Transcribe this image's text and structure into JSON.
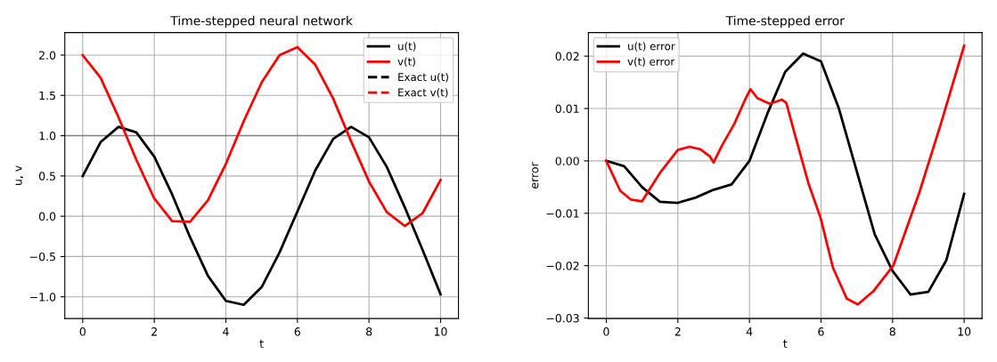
{
  "chart_data": [
    {
      "type": "line",
      "title": "Time-stepped neural network",
      "xlabel": "t",
      "ylabel": "u, v",
      "x": [
        0,
        0.5,
        1,
        1.5,
        2,
        2.5,
        3,
        3.5,
        4,
        4.5,
        5,
        5.5,
        6,
        6.5,
        7,
        7.5,
        8,
        8.5,
        9,
        9.5,
        10
      ],
      "series": [
        {
          "name": "u(t)",
          "color": "#000000",
          "values": [
            0.5,
            0.92,
            1.11,
            1.04,
            0.74,
            0.27,
            -0.26,
            -0.74,
            -1.05,
            -1.1,
            -0.88,
            -0.45,
            0.06,
            0.57,
            0.96,
            1.11,
            0.98,
            0.61,
            0.11,
            -0.42,
            -0.97
          ]
        },
        {
          "name": "v(t)",
          "color": "#ff0000",
          "values": [
            2.0,
            1.72,
            1.23,
            0.7,
            0.22,
            -0.06,
            -0.07,
            0.2,
            0.65,
            1.18,
            1.66,
            2.0,
            2.1,
            1.88,
            1.46,
            0.93,
            0.43,
            0.05,
            -0.12,
            0.04,
            0.45
          ]
        },
        {
          "name": "Exact u(t)",
          "color": "#000000",
          "line_style": "dashed",
          "values": [
            null,
            null,
            null,
            null,
            null,
            null,
            null,
            null,
            null,
            null,
            null,
            null,
            null,
            null,
            null,
            null,
            null,
            null,
            null,
            null,
            null
          ]
        },
        {
          "name": "Exact v(t)",
          "color": "#ff0000",
          "line_style": "dashed",
          "values": [
            null,
            null,
            null,
            null,
            null,
            null,
            null,
            null,
            null,
            null,
            null,
            null,
            null,
            null,
            null,
            null,
            null,
            null,
            null,
            null,
            null
          ]
        }
      ],
      "xlim": [
        -0.5,
        10.5
      ],
      "xticks": [
        0,
        2,
        4,
        6,
        8,
        10
      ],
      "ylim": [
        -1.27,
        2.28
      ],
      "yticks": [
        {
          "value": -1.0,
          "label": "−1.0"
        },
        {
          "value": -0.5,
          "label": "−0.5"
        },
        {
          "value": 0.0,
          "label": "0.0"
        },
        {
          "value": 0.5,
          "label": "0.5"
        },
        {
          "value": 1.0,
          "label": "1.0"
        },
        {
          "value": 1.5,
          "label": "1.5"
        },
        {
          "value": 2.0,
          "label": "2.0"
        }
      ],
      "ref_lines": [
        {
          "axis": "y",
          "value": 1.0,
          "color": "#808080"
        }
      ],
      "grid": true,
      "legend": "top right"
    },
    {
      "type": "line",
      "title": "Time-stepped error",
      "xlabel": "t",
      "ylabel": "error",
      "series": [
        {
          "name": "u(t) error",
          "color": "#000000",
          "x": [
            0,
            0.5,
            1,
            1.5,
            2,
            2.5,
            3,
            3.5,
            4,
            4.5,
            5,
            5.5,
            6,
            6.5,
            7,
            7.5,
            8,
            8.5,
            9,
            9.5,
            10
          ],
          "values": [
            0,
            -0.001,
            -0.005,
            -0.0078,
            -0.008,
            -0.007,
            -0.0055,
            -0.0045,
            0.0,
            0.009,
            0.017,
            0.0205,
            0.019,
            0.01,
            -0.002,
            -0.014,
            -0.021,
            -0.0255,
            -0.025,
            -0.019,
            -0.0063
          ]
        },
        {
          "name": "v(t) error",
          "color": "#ff0000",
          "x": [
            0,
            0.39,
            0.69,
            1.0,
            1.5,
            2.0,
            2.33,
            2.63,
            2.89,
            3.0,
            3.23,
            3.58,
            3.88,
            4.03,
            4.22,
            4.57,
            4.91,
            5.03,
            5.3,
            5.65,
            5.99,
            6.33,
            6.72,
            7.03,
            7.46,
            8.02,
            8.75,
            9.35,
            10.0
          ],
          "values": [
            0,
            -0.0057,
            -0.0074,
            -0.0077,
            -0.0023,
            0.0021,
            0.0027,
            0.0022,
            0.0009,
            -0.0003,
            0.0029,
            0.0071,
            0.0117,
            0.0137,
            0.012,
            0.0109,
            0.0117,
            0.0111,
            0.0043,
            -0.0043,
            -0.0109,
            -0.0203,
            -0.0263,
            -0.0274,
            -0.0249,
            -0.02,
            -0.006,
            0.0071,
            0.022
          ]
        }
      ],
      "xlim": [
        -0.5,
        10.5
      ],
      "xticks": [
        0,
        2,
        4,
        6,
        8,
        10
      ],
      "ylim": [
        -0.0301,
        0.0245
      ],
      "yticks": [
        {
          "value": -0.03,
          "label": "−0.03"
        },
        {
          "value": -0.02,
          "label": "−0.02"
        },
        {
          "value": -0.01,
          "label": "−0.01"
        },
        {
          "value": 0.0,
          "label": "0.00"
        },
        {
          "value": 0.01,
          "label": "0.01"
        },
        {
          "value": 0.02,
          "label": "0.02"
        }
      ],
      "grid": true,
      "legend": "top left"
    }
  ]
}
